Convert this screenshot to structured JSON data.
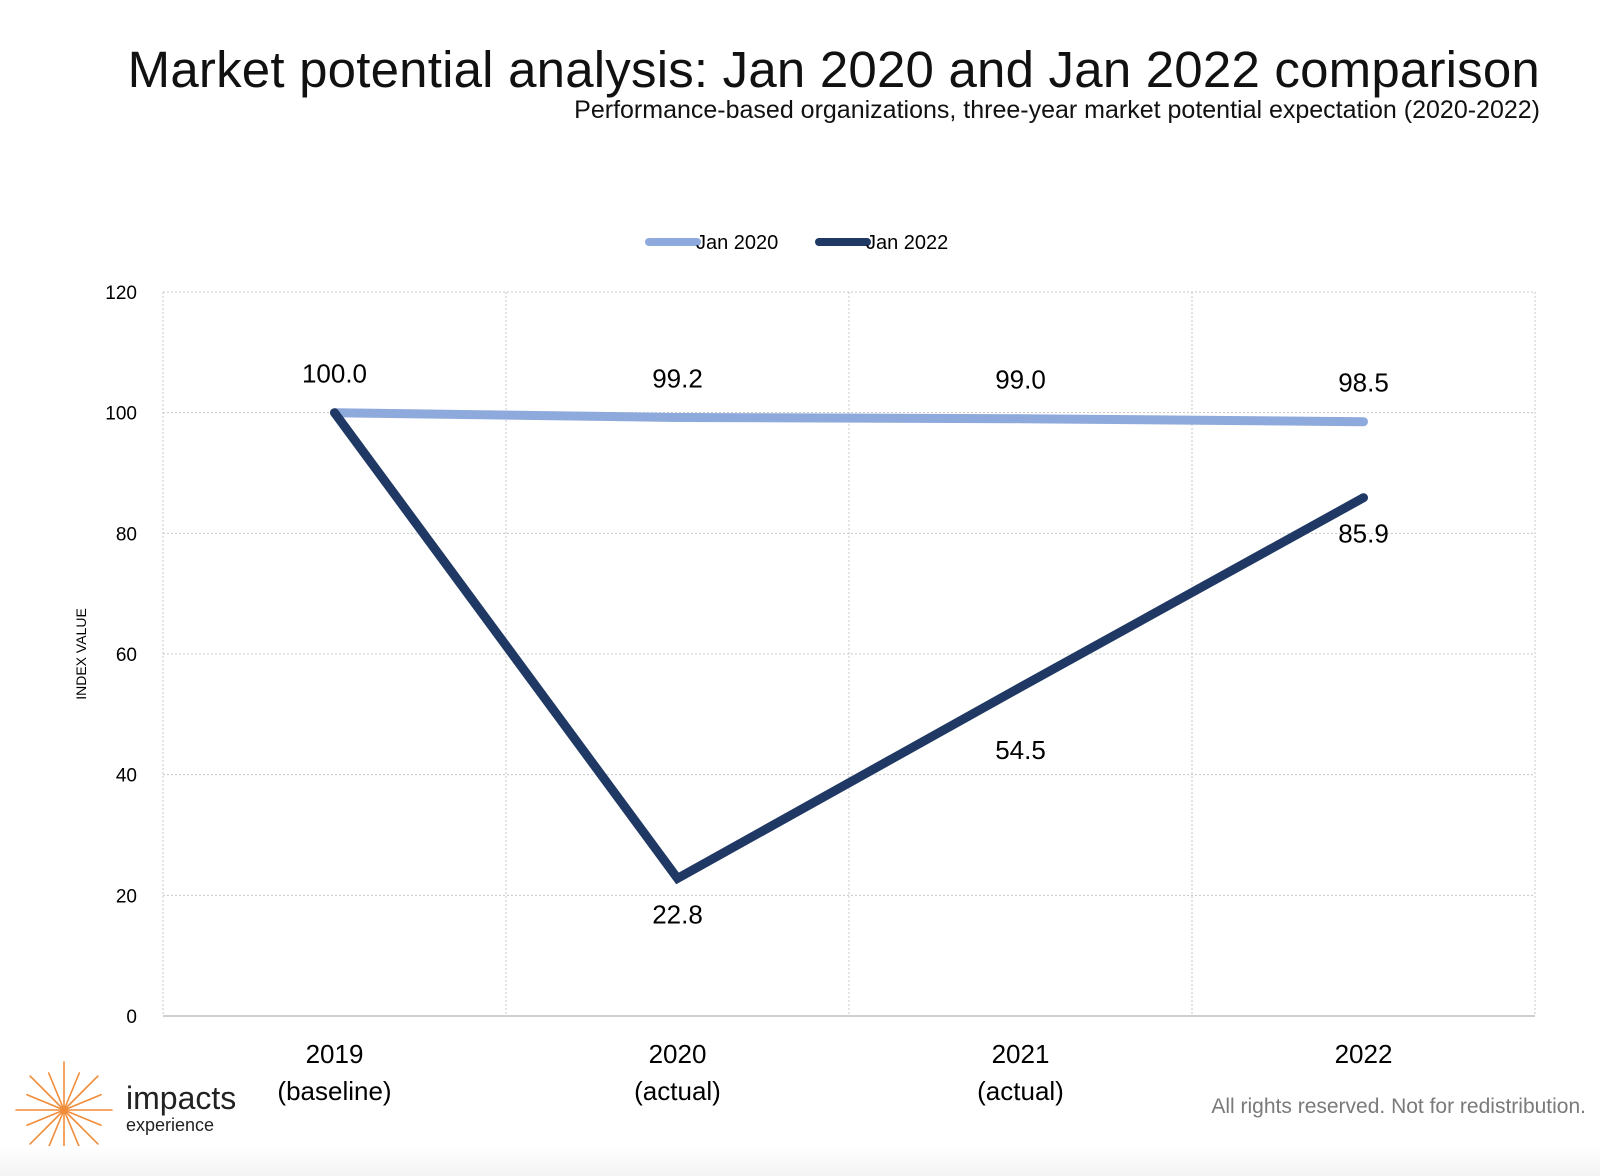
{
  "header": {
    "title": "Market potential analysis: Jan 2020 and Jan 2022 comparison",
    "subtitle": "Performance-based organizations, three-year market potential expectation (2020-2022)"
  },
  "chart_data": {
    "type": "line",
    "categories": [
      [
        "2019",
        "(baseline)"
      ],
      [
        "2020",
        "(actual)"
      ],
      [
        "2021",
        "(actual)"
      ],
      [
        "2022"
      ]
    ],
    "series": [
      {
        "name": "Jan 2020",
        "color": "#8ea9db",
        "values": [
          100.0,
          99.2,
          99.0,
          98.5
        ],
        "labels": [
          "100.0",
          "99.2",
          "99.0",
          "98.5"
        ]
      },
      {
        "name": "Jan 2022",
        "color": "#1f3864",
        "values": [
          100.0,
          22.8,
          54.5,
          85.9
        ],
        "labels": [
          "",
          "22.8",
          "54.5",
          "85.9"
        ]
      }
    ],
    "ylabel": "INDEX VALUE",
    "ylim": [
      0,
      120
    ],
    "yticks": [
      0,
      20,
      40,
      60,
      80,
      100,
      120
    ],
    "grid": true,
    "legend": "top-center"
  },
  "brand": {
    "name": "impacts",
    "tagline": "experience",
    "accent_color": "#f28c38"
  },
  "footer": {
    "rights": "All rights reserved. Not for redistribution."
  }
}
